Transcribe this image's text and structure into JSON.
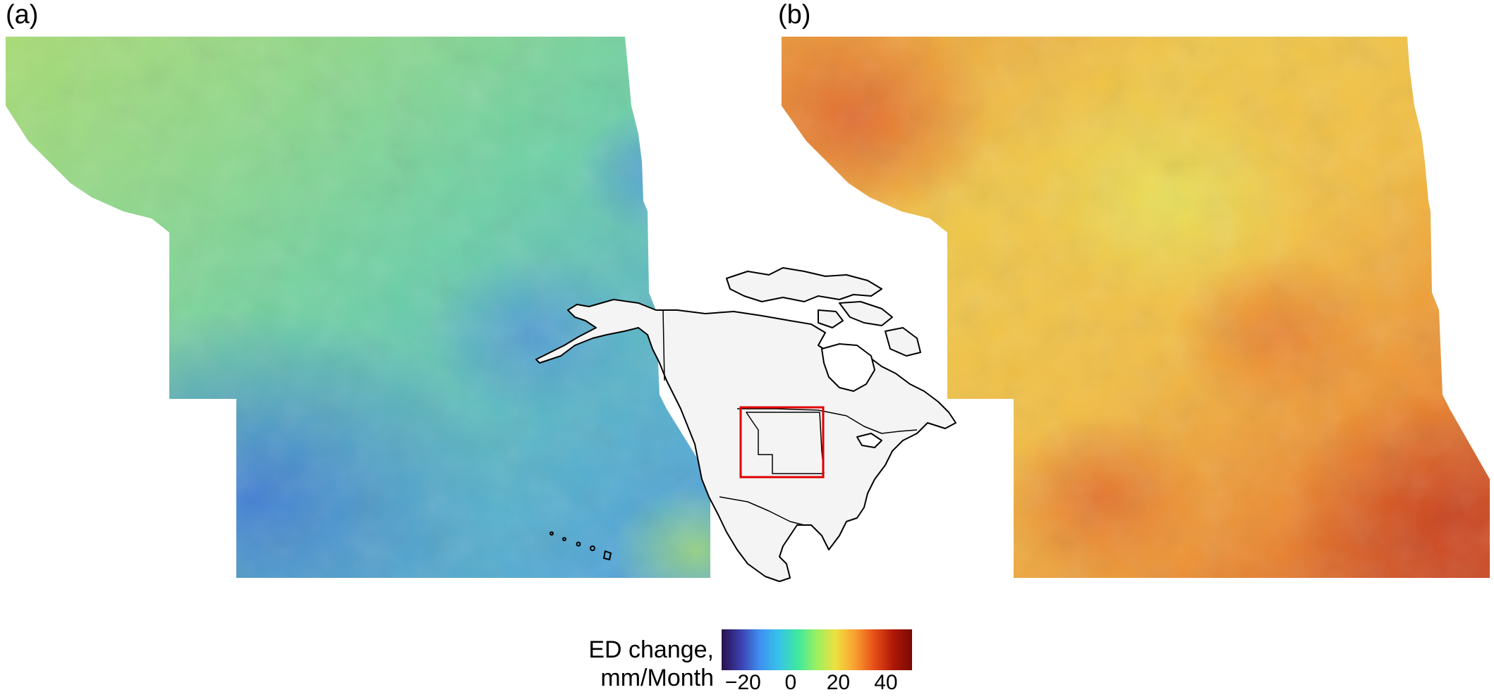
{
  "panels": [
    {
      "label": "(a)",
      "palette": "cool",
      "description_colors": [
        "#7ec98a",
        "#9bd67a",
        "#6fcf9a",
        "#5fb8c8",
        "#4a9be0",
        "#3d6fd0"
      ]
    },
    {
      "label": "(b)",
      "palette": "warm",
      "description_colors": [
        "#e8e255",
        "#f2c840",
        "#f09a30",
        "#e8702a",
        "#d9532b",
        "#b83a20"
      ]
    }
  ],
  "inset": {
    "continent": "North America",
    "highlight_color": "#e00000"
  },
  "legend": {
    "title_line1": "ED change,",
    "title_line2": "mm/Month",
    "ticks": [
      "−20",
      "0",
      "20",
      "40"
    ],
    "tick_values": [
      -20,
      0,
      20,
      40
    ],
    "range": [
      -29,
      51
    ],
    "colors": [
      "#2a0f4a",
      "#3b3fae",
      "#3f8ff0",
      "#36c3e8",
      "#3ee8a0",
      "#9bf060",
      "#eee040",
      "#f8a030",
      "#e85018",
      "#b01808",
      "#7a0a04"
    ]
  }
}
